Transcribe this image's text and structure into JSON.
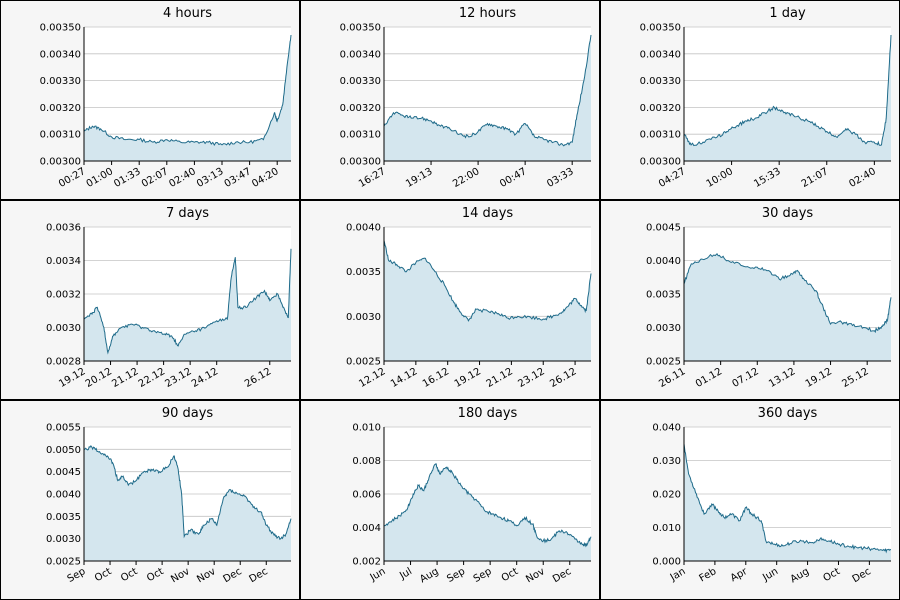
{
  "colors": {
    "line": "#1f6b8a",
    "fill": "#d4e6ee",
    "grid": "#c4c4c4",
    "plot_bg": "#ffffff",
    "panel_bg": "#f6f6f6"
  },
  "chart_data": [
    {
      "type": "area",
      "title": "4 hours",
      "yticks": [
        "0.00300",
        "0.00310",
        "0.00320",
        "0.00330",
        "0.00340",
        "0.00350"
      ],
      "ylim": [
        0.003,
        0.0035
      ],
      "xticks": [
        "00:27",
        "01:00",
        "01:33",
        "02:07",
        "02:40",
        "03:13",
        "03:47",
        "04:20"
      ],
      "xtick_pos": [
        0,
        1,
        2,
        3,
        4,
        5,
        6,
        7
      ],
      "xrange": [
        0,
        7.5
      ],
      "points": [
        [
          0,
          0.00311
        ],
        [
          0.3,
          0.00313
        ],
        [
          0.6,
          0.00312
        ],
        [
          1.0,
          0.00309
        ],
        [
          1.5,
          0.00308
        ],
        [
          2.0,
          0.00308
        ],
        [
          2.5,
          0.00307
        ],
        [
          3.0,
          0.00308
        ],
        [
          3.5,
          0.00307
        ],
        [
          4.0,
          0.00307
        ],
        [
          4.5,
          0.00307
        ],
        [
          5.0,
          0.00306
        ],
        [
          5.5,
          0.00307
        ],
        [
          6.0,
          0.00307
        ],
        [
          6.5,
          0.00308
        ],
        [
          6.9,
          0.00318
        ],
        [
          7.0,
          0.00315
        ],
        [
          7.2,
          0.00321
        ],
        [
          7.35,
          0.00335
        ],
        [
          7.5,
          0.00347
        ]
      ]
    },
    {
      "type": "area",
      "title": "12 hours",
      "yticks": [
        "0.00300",
        "0.00310",
        "0.00320",
        "0.00330",
        "0.00340",
        "0.00350"
      ],
      "ylim": [
        0.003,
        0.0035
      ],
      "xticks": [
        "16:27",
        "19:13",
        "22:00",
        "00:47",
        "03:33"
      ],
      "xtick_pos": [
        0,
        1,
        2,
        3,
        4
      ],
      "xrange": [
        0,
        4.4
      ],
      "points": [
        [
          0,
          0.00313
        ],
        [
          0.2,
          0.00318
        ],
        [
          0.4,
          0.00317
        ],
        [
          0.6,
          0.00316
        ],
        [
          0.8,
          0.00316
        ],
        [
          1.0,
          0.00315
        ],
        [
          1.2,
          0.00313
        ],
        [
          1.4,
          0.00312
        ],
        [
          1.6,
          0.0031
        ],
        [
          1.8,
          0.00309
        ],
        [
          2.0,
          0.00311
        ],
        [
          2.2,
          0.00314
        ],
        [
          2.4,
          0.00313
        ],
        [
          2.6,
          0.00312
        ],
        [
          2.8,
          0.0031
        ],
        [
          3.0,
          0.00314
        ],
        [
          3.2,
          0.00309
        ],
        [
          3.4,
          0.00308
        ],
        [
          3.6,
          0.00307
        ],
        [
          3.8,
          0.00306
        ],
        [
          4.0,
          0.00307
        ],
        [
          4.1,
          0.00317
        ],
        [
          4.25,
          0.0033
        ],
        [
          4.4,
          0.00347
        ]
      ]
    },
    {
      "type": "area",
      "title": "1 day",
      "yticks": [
        "0.00300",
        "0.00310",
        "0.00320",
        "0.00330",
        "0.00340",
        "0.00350"
      ],
      "ylim": [
        0.003,
        0.0035
      ],
      "xticks": [
        "04:27",
        "10:00",
        "15:33",
        "21:07",
        "02:40"
      ],
      "xtick_pos": [
        0,
        1,
        2,
        3,
        4
      ],
      "xrange": [
        0,
        4.35
      ],
      "points": [
        [
          0,
          0.0031
        ],
        [
          0.15,
          0.00306
        ],
        [
          0.4,
          0.00307
        ],
        [
          0.7,
          0.00309
        ],
        [
          0.9,
          0.00311
        ],
        [
          1.1,
          0.00313
        ],
        [
          1.3,
          0.00315
        ],
        [
          1.5,
          0.00316
        ],
        [
          1.7,
          0.00318
        ],
        [
          1.9,
          0.0032
        ],
        [
          2.1,
          0.00318
        ],
        [
          2.3,
          0.00317
        ],
        [
          2.6,
          0.00315
        ],
        [
          2.8,
          0.00313
        ],
        [
          3.0,
          0.00311
        ],
        [
          3.2,
          0.00309
        ],
        [
          3.4,
          0.00312
        ],
        [
          3.6,
          0.0031
        ],
        [
          3.8,
          0.00307
        ],
        [
          4.0,
          0.00307
        ],
        [
          4.15,
          0.00306
        ],
        [
          4.25,
          0.00316
        ],
        [
          4.35,
          0.00347
        ]
      ]
    },
    {
      "type": "area",
      "title": "7 days",
      "yticks": [
        "0.0028",
        "0.0030",
        "0.0032",
        "0.0034",
        "0.0036"
      ],
      "ylim": [
        0.0028,
        0.0036
      ],
      "xticks": [
        "19.12",
        "20.12",
        "21.12",
        "22.12",
        "23.12",
        "24.12",
        "26.12"
      ],
      "xtick_pos": [
        0,
        1,
        2,
        3,
        4,
        5,
        7
      ],
      "xrange": [
        0,
        7.8
      ],
      "points": [
        [
          0,
          0.00305
        ],
        [
          0.3,
          0.00308
        ],
        [
          0.5,
          0.00312
        ],
        [
          0.75,
          0.003
        ],
        [
          0.9,
          0.00285
        ],
        [
          1.1,
          0.00295
        ],
        [
          1.4,
          0.003
        ],
        [
          1.8,
          0.00302
        ],
        [
          2.2,
          0.003
        ],
        [
          2.6,
          0.00298
        ],
        [
          3.0,
          0.00296
        ],
        [
          3.3,
          0.00295
        ],
        [
          3.55,
          0.00289
        ],
        [
          3.8,
          0.00296
        ],
        [
          4.2,
          0.00298
        ],
        [
          4.6,
          0.003
        ],
        [
          5.0,
          0.00304
        ],
        [
          5.4,
          0.00305
        ],
        [
          5.55,
          0.0033
        ],
        [
          5.7,
          0.00342
        ],
        [
          5.8,
          0.00312
        ],
        [
          6.1,
          0.00312
        ],
        [
          6.5,
          0.00318
        ],
        [
          6.8,
          0.00322
        ],
        [
          7.0,
          0.00316
        ],
        [
          7.3,
          0.0032
        ],
        [
          7.55,
          0.00311
        ],
        [
          7.7,
          0.00306
        ],
        [
          7.8,
          0.00347
        ]
      ]
    },
    {
      "type": "area",
      "title": "14 days",
      "yticks": [
        "0.0025",
        "0.0030",
        "0.0035",
        "0.0040"
      ],
      "ylim": [
        0.0025,
        0.004
      ],
      "xticks": [
        "12.12",
        "14.12",
        "16.12",
        "19.12",
        "21.12",
        "23.12",
        "26.12"
      ],
      "xtick_pos": [
        0,
        1,
        2,
        3,
        4,
        5,
        6
      ],
      "xrange": [
        0,
        6.5
      ],
      "points": [
        [
          0,
          0.00385
        ],
        [
          0.15,
          0.00362
        ],
        [
          0.4,
          0.00358
        ],
        [
          0.7,
          0.0035
        ],
        [
          1.0,
          0.0036
        ],
        [
          1.3,
          0.00365
        ],
        [
          1.6,
          0.0035
        ],
        [
          1.9,
          0.00335
        ],
        [
          2.2,
          0.00315
        ],
        [
          2.4,
          0.00305
        ],
        [
          2.65,
          0.00295
        ],
        [
          2.9,
          0.00308
        ],
        [
          3.3,
          0.00305
        ],
        [
          3.6,
          0.00303
        ],
        [
          3.9,
          0.00298
        ],
        [
          4.2,
          0.003
        ],
        [
          4.6,
          0.00299
        ],
        [
          5.0,
          0.00297
        ],
        [
          5.3,
          0.003
        ],
        [
          5.6,
          0.00305
        ],
        [
          5.8,
          0.00312
        ],
        [
          6.0,
          0.0032
        ],
        [
          6.2,
          0.00312
        ],
        [
          6.35,
          0.00306
        ],
        [
          6.5,
          0.00348
        ]
      ]
    },
    {
      "type": "area",
      "title": "30 days",
      "yticks": [
        "0.0025",
        "0.0030",
        "0.0035",
        "0.0040",
        "0.0045"
      ],
      "ylim": [
        0.0025,
        0.0045
      ],
      "xticks": [
        "26.11",
        "01.12",
        "07.12",
        "13.12",
        "19.12",
        "25.12"
      ],
      "xtick_pos": [
        0,
        1,
        2,
        3,
        4,
        5
      ],
      "xrange": [
        0,
        5.65
      ],
      "points": [
        [
          0,
          0.00365
        ],
        [
          0.2,
          0.00395
        ],
        [
          0.5,
          0.00402
        ],
        [
          0.9,
          0.0041
        ],
        [
          1.2,
          0.004
        ],
        [
          1.6,
          0.00392
        ],
        [
          2.0,
          0.0039
        ],
        [
          2.3,
          0.00385
        ],
        [
          2.6,
          0.00372
        ],
        [
          2.9,
          0.00378
        ],
        [
          3.1,
          0.00385
        ],
        [
          3.3,
          0.0037
        ],
        [
          3.6,
          0.00355
        ],
        [
          3.8,
          0.0033
        ],
        [
          4.0,
          0.00305
        ],
        [
          4.3,
          0.00308
        ],
        [
          4.6,
          0.00303
        ],
        [
          4.9,
          0.003
        ],
        [
          5.2,
          0.00295
        ],
        [
          5.4,
          0.00302
        ],
        [
          5.55,
          0.0031
        ],
        [
          5.65,
          0.00345
        ]
      ]
    },
    {
      "type": "area",
      "title": "90 days",
      "yticks": [
        "0.0025",
        "0.0030",
        "0.0035",
        "0.0040",
        "0.0045",
        "0.0050",
        "0.0055"
      ],
      "ylim": [
        0.0025,
        0.0055
      ],
      "xticks": [
        "Sep",
        "Oct",
        "Oct",
        "Oct",
        "Nov",
        "Nov",
        "Dec",
        "Dec"
      ],
      "xtick_pos": [
        0,
        1,
        2,
        3,
        4,
        5,
        6,
        7
      ],
      "xrange": [
        0,
        7.95
      ],
      "points": [
        [
          0,
          0.005
        ],
        [
          0.3,
          0.00505
        ],
        [
          0.6,
          0.00495
        ],
        [
          0.9,
          0.00485
        ],
        [
          1.1,
          0.0047
        ],
        [
          1.3,
          0.0043
        ],
        [
          1.5,
          0.0044
        ],
        [
          1.7,
          0.0042
        ],
        [
          2.0,
          0.0043
        ],
        [
          2.3,
          0.0045
        ],
        [
          2.6,
          0.00455
        ],
        [
          2.9,
          0.0045
        ],
        [
          3.2,
          0.0046
        ],
        [
          3.45,
          0.00485
        ],
        [
          3.6,
          0.0046
        ],
        [
          3.75,
          0.004
        ],
        [
          3.85,
          0.00305
        ],
        [
          4.1,
          0.0032
        ],
        [
          4.4,
          0.0031
        ],
        [
          4.6,
          0.0033
        ],
        [
          4.9,
          0.00345
        ],
        [
          5.1,
          0.0033
        ],
        [
          5.35,
          0.0039
        ],
        [
          5.6,
          0.0041
        ],
        [
          5.9,
          0.004
        ],
        [
          6.2,
          0.00395
        ],
        [
          6.5,
          0.0037
        ],
        [
          6.8,
          0.0036
        ],
        [
          7.0,
          0.0033
        ],
        [
          7.3,
          0.00308
        ],
        [
          7.55,
          0.003
        ],
        [
          7.75,
          0.0031
        ],
        [
          7.95,
          0.00345
        ]
      ]
    },
    {
      "type": "area",
      "title": "180 days",
      "yticks": [
        "0.002",
        "0.004",
        "0.006",
        "0.008",
        "0.010"
      ],
      "ylim": [
        0.002,
        0.01
      ],
      "xticks": [
        "Jun",
        "Jul",
        "Aug",
        "Sep",
        "Sep",
        "Oct",
        "Nov",
        "Dec"
      ],
      "xtick_pos": [
        0,
        1,
        2,
        3,
        4,
        5,
        6,
        7
      ],
      "xrange": [
        0,
        7.8
      ],
      "points": [
        [
          0,
          0.0041
        ],
        [
          0.3,
          0.0044
        ],
        [
          0.6,
          0.0047
        ],
        [
          0.9,
          0.0052
        ],
        [
          1.1,
          0.006
        ],
        [
          1.3,
          0.0065
        ],
        [
          1.5,
          0.0062
        ],
        [
          1.7,
          0.007
        ],
        [
          1.95,
          0.0078
        ],
        [
          2.1,
          0.0072
        ],
        [
          2.35,
          0.0076
        ],
        [
          2.6,
          0.0072
        ],
        [
          2.9,
          0.0065
        ],
        [
          3.2,
          0.006
        ],
        [
          3.5,
          0.0056
        ],
        [
          3.8,
          0.005
        ],
        [
          4.1,
          0.0048
        ],
        [
          4.4,
          0.0046
        ],
        [
          4.7,
          0.0044
        ],
        [
          5.0,
          0.0041
        ],
        [
          5.3,
          0.0046
        ],
        [
          5.6,
          0.0042
        ],
        [
          5.75,
          0.0035
        ],
        [
          6.0,
          0.0032
        ],
        [
          6.3,
          0.0033
        ],
        [
          6.6,
          0.0038
        ],
        [
          6.9,
          0.0037
        ],
        [
          7.2,
          0.0033
        ],
        [
          7.5,
          0.003
        ],
        [
          7.65,
          0.00295
        ],
        [
          7.8,
          0.00345
        ]
      ]
    },
    {
      "type": "area",
      "title": "360 days",
      "yticks": [
        "0.000",
        "0.010",
        "0.020",
        "0.030",
        "0.040"
      ],
      "ylim": [
        0.0,
        0.04
      ],
      "xticks": [
        "Jan",
        "Feb",
        "Apr",
        "Jun",
        "Aug",
        "Oct",
        "Dec"
      ],
      "xtick_pos": [
        0,
        1,
        2,
        3,
        4,
        5,
        6
      ],
      "xrange": [
        0,
        6.7
      ],
      "points": [
        [
          0,
          0.035
        ],
        [
          0.15,
          0.026
        ],
        [
          0.4,
          0.02
        ],
        [
          0.65,
          0.014
        ],
        [
          0.9,
          0.017
        ],
        [
          1.1,
          0.015
        ],
        [
          1.3,
          0.013
        ],
        [
          1.55,
          0.014
        ],
        [
          1.8,
          0.012
        ],
        [
          2.0,
          0.016
        ],
        [
          2.2,
          0.014
        ],
        [
          2.5,
          0.012
        ],
        [
          2.65,
          0.006
        ],
        [
          2.9,
          0.005
        ],
        [
          3.2,
          0.0045
        ],
        [
          3.5,
          0.0055
        ],
        [
          3.8,
          0.006
        ],
        [
          4.1,
          0.0055
        ],
        [
          4.4,
          0.0065
        ],
        [
          4.7,
          0.006
        ],
        [
          5.0,
          0.005
        ],
        [
          5.3,
          0.0045
        ],
        [
          5.6,
          0.004
        ],
        [
          5.9,
          0.0038
        ],
        [
          6.2,
          0.0035
        ],
        [
          6.5,
          0.0031
        ],
        [
          6.7,
          0.0034
        ]
      ]
    }
  ]
}
